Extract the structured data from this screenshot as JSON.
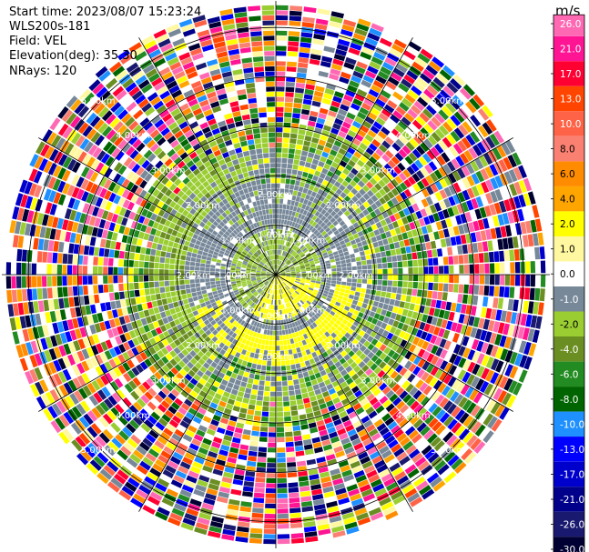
{
  "info": {
    "start_time": "Start time: 2023/08/07 15:23:24",
    "instrument": "WLS200s-181",
    "field": "Field: VEL",
    "elevation": "Elevation(deg): 35.30",
    "nrays": "NRays: 120"
  },
  "chart_data": {
    "type": "heatmap",
    "projection": "polar-ppi",
    "nrays": 120,
    "ring_labels": [
      "1.00km",
      "2.00km",
      "3.00km",
      "4.00km",
      "5.00km"
    ],
    "colorbar": {
      "unit": "m/s",
      "ticks": [
        "26.0",
        "21.0",
        "17.0",
        "13.0",
        "10.0",
        "8.0",
        "6.0",
        "4.0",
        "2.0",
        "1.0",
        "0.0",
        "-1.0",
        "-2.0",
        "-4.0",
        "-6.0",
        "-8.0",
        "-10.0",
        "-13.0",
        "-17.0",
        "-21.0",
        "-26.0",
        "-30.0"
      ],
      "colors": [
        "#ff69b4",
        "#ff1493",
        "#ff0033",
        "#ff4500",
        "#ff6347",
        "#fa8072",
        "#ff8c00",
        "#ffa500",
        "#ffff00",
        "#fff8a0",
        "#ffffff",
        "#778899",
        "#9acd32",
        "#6b8e23",
        "#228b22",
        "#006400",
        "#1e90ff",
        "#0000ff",
        "#0000cd",
        "#00008b",
        "#191970",
        "#000033"
      ]
    }
  }
}
